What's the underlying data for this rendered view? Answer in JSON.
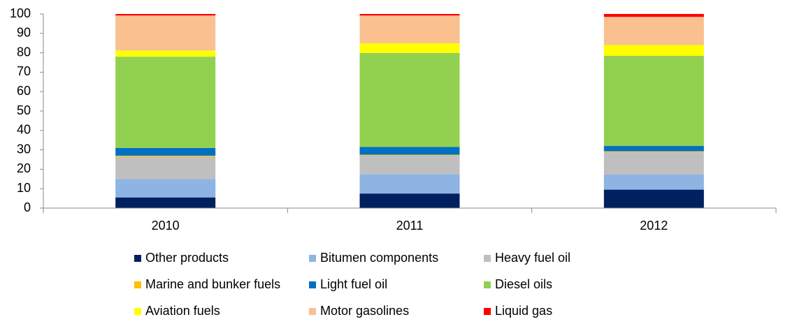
{
  "chart_data": {
    "type": "stacked_bar",
    "categories": [
      "2010",
      "2011",
      "2012"
    ],
    "series": [
      {
        "name": "Other products",
        "color": "#002060",
        "values": [
          5.5,
          7.5,
          9.5
        ]
      },
      {
        "name": "Bitumen components",
        "color": "#8db4e2",
        "values": [
          9.5,
          10,
          7.8
        ]
      },
      {
        "name": "Heavy fuel oil",
        "color": "#bfbfbf",
        "values": [
          11.5,
          9.7,
          11.7
        ]
      },
      {
        "name": "Marine and bunker fuels",
        "color": "#ffc000",
        "values": [
          0.5,
          0.3,
          0.3
        ]
      },
      {
        "name": "Light fuel oil",
        "color": "#0070c0",
        "values": [
          4,
          4,
          2.7
        ]
      },
      {
        "name": "Diesel oils",
        "color": "#92d050",
        "values": [
          47,
          48.4,
          46.5
        ]
      },
      {
        "name": "Aviation fuels",
        "color": "#ffff00",
        "values": [
          3.2,
          5,
          5.5
        ]
      },
      {
        "name": "Motor gasolines",
        "color": "#fac090",
        "values": [
          18,
          14.3,
          14.5
        ]
      },
      {
        "name": "Liquid gas",
        "color": "#ff0000",
        "values": [
          0.8,
          0.8,
          1.5
        ]
      }
    ],
    "ylim": [
      0,
      100
    ],
    "yticks": [
      0,
      10,
      20,
      30,
      40,
      50,
      60,
      70,
      80,
      90,
      100
    ],
    "grid": false,
    "legend": "bottom"
  }
}
